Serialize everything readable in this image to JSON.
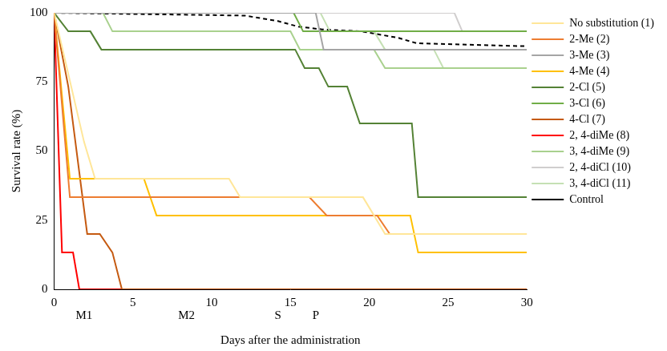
{
  "chart_data": {
    "type": "line",
    "x_label": "Days after the administration",
    "y_label": "Survival rate (%)",
    "xlim": [
      0,
      30
    ],
    "xticks": [
      0,
      5,
      10,
      15,
      20,
      25,
      30
    ],
    "ylim": [
      0,
      100
    ],
    "yticks": [
      0,
      25,
      50,
      75,
      100
    ],
    "grid": false,
    "legend": "right",
    "annotations": [
      {
        "text": "M1",
        "x": 1.9
      },
      {
        "text": "M2",
        "x": 8.4
      },
      {
        "text": "S",
        "x": 14.2
      },
      {
        "text": "P",
        "x": 16.6
      }
    ],
    "series": [
      {
        "name": "No substitution (1)",
        "color": "#FFE699",
        "line_style": "solid",
        "x": [
          0,
          1.9,
          2.6,
          11.1,
          11.8,
          19.6,
          20.3,
          21.0,
          30
        ],
        "values": [
          100,
          53.3,
          40,
          40,
          33.3,
          33.3,
          26.7,
          20,
          20
        ]
      },
      {
        "name": "2-Me (2)",
        "color": "#ED7D31",
        "line_style": "solid",
        "x": [
          0,
          1.0,
          16.2,
          17.3,
          20.5,
          21.3,
          30
        ],
        "values": [
          100,
          33.3,
          33.3,
          26.7,
          26.7,
          20,
          20
        ]
      },
      {
        "name": "3-Me (3)",
        "color": "#A5A5A5",
        "line_style": "solid",
        "x": [
          0,
          16.6,
          17.1,
          30
        ],
        "values": [
          100,
          100,
          86.7,
          86.7
        ]
      },
      {
        "name": "4-Me (4)",
        "color": "#FFC000",
        "line_style": "solid",
        "x": [
          0,
          1.0,
          5.7,
          6.5,
          22.6,
          23.1,
          30
        ],
        "values": [
          100,
          40,
          40,
          26.7,
          26.7,
          13.3,
          13.3
        ]
      },
      {
        "name": "2-Cl (5)",
        "color": "#548235",
        "line_style": "solid",
        "x": [
          0,
          0.9,
          2.3,
          3.0,
          15.3,
          15.9,
          16.8,
          17.4,
          18.6,
          19.4,
          22.7,
          23.1,
          30
        ],
        "values": [
          100,
          93.3,
          93.3,
          86.7,
          86.7,
          80,
          80,
          73.3,
          73.3,
          60,
          60,
          33.3,
          33.3
        ]
      },
      {
        "name": "3-Cl (6)",
        "color": "#70AD47",
        "line_style": "solid",
        "x": [
          0,
          15.2,
          15.8,
          30
        ],
        "values": [
          100,
          100,
          93.3,
          93.3
        ]
      },
      {
        "name": "4-Cl (7)",
        "color": "#C55A11",
        "line_style": "solid",
        "x": [
          0,
          0.9,
          2.1,
          2.9,
          3.7,
          4.3,
          30
        ],
        "values": [
          100,
          73.3,
          20,
          20,
          13.3,
          0,
          0
        ]
      },
      {
        "name": "2, 4-diMe (8)",
        "color": "#FF0000",
        "line_style": "solid",
        "x": [
          0,
          0.5,
          1.2,
          1.6,
          30
        ],
        "values": [
          100,
          13.3,
          13.3,
          0,
          0
        ]
      },
      {
        "name": "3, 4-diMe (9)",
        "color": "#A9D18E",
        "line_style": "solid",
        "x": [
          0,
          3.1,
          3.7,
          15.0,
          15.6,
          20.3,
          21.0,
          30
        ],
        "values": [
          100,
          100,
          93.3,
          93.3,
          86.7,
          86.7,
          80,
          80
        ]
      },
      {
        "name": "2, 4-diCl (10)",
        "color": "#D0CECE",
        "line_style": "solid",
        "x": [
          0,
          25.4,
          25.9,
          30
        ],
        "values": [
          100,
          100,
          93.3,
          93.3
        ]
      },
      {
        "name": "3, 4-diCl (11)",
        "color": "#C5E0B4",
        "line_style": "solid",
        "x": [
          0,
          16.9,
          17.5,
          20.3,
          21.0,
          24.1,
          24.7,
          30
        ],
        "values": [
          100,
          100,
          93.3,
          93.3,
          86.7,
          86.7,
          80,
          80
        ]
      },
      {
        "name": "Control",
        "color": "#000000",
        "line_style": "dashed",
        "x": [
          0,
          12.1,
          14.2,
          15.5,
          17.0,
          19.5,
          21.8,
          23.0,
          29.4,
          30
        ],
        "values": [
          100,
          99,
          97,
          95,
          94,
          93.3,
          91,
          89,
          88,
          88
        ]
      }
    ]
  }
}
